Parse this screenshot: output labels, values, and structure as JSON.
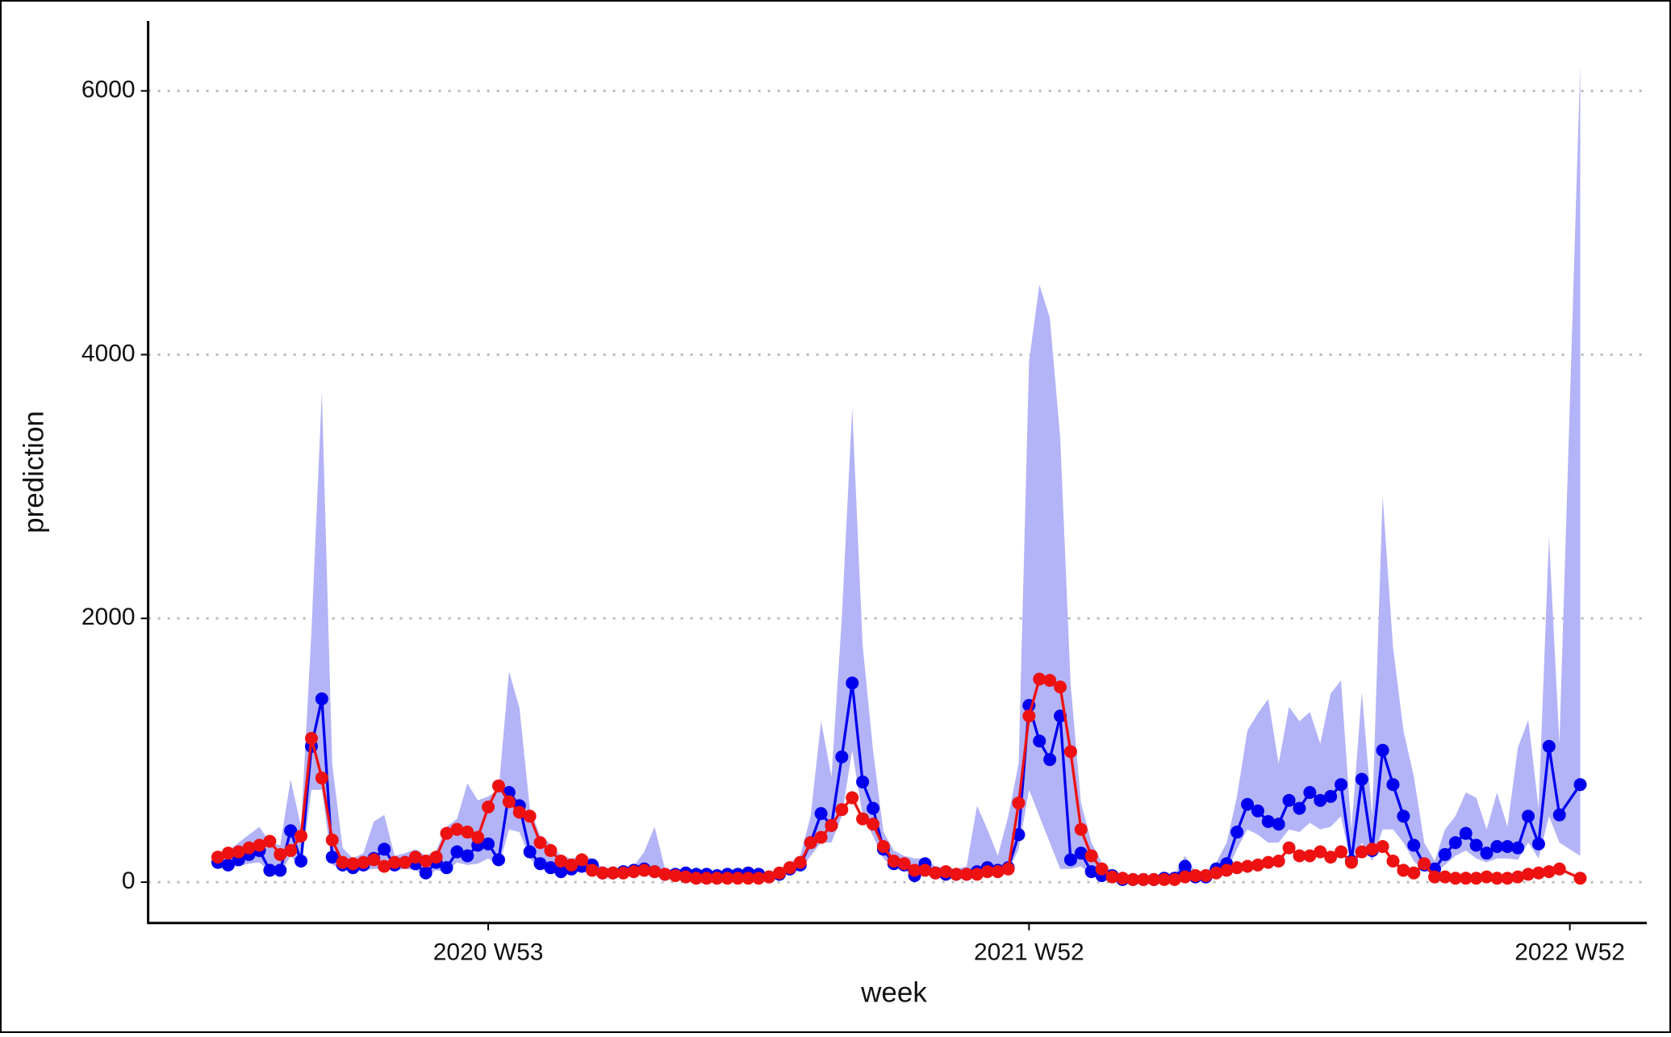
{
  "chart_data": {
    "type": "line",
    "x_label": "week",
    "y_label": "prediction",
    "x": [
      -26,
      -25,
      -24,
      -23,
      -22,
      -21,
      -20,
      -19,
      -18,
      -17,
      -16,
      -15,
      -14,
      -13,
      -12,
      -11,
      -10,
      -9,
      -8,
      -7,
      -6,
      -5,
      -4,
      -3,
      -2,
      -1,
      0,
      1,
      2,
      3,
      4,
      5,
      6,
      7,
      8,
      9,
      10,
      11,
      12,
      13,
      14,
      15,
      16,
      17,
      18,
      19,
      20,
      21,
      22,
      23,
      24,
      25,
      26,
      27,
      28,
      29,
      30,
      31,
      32,
      33,
      34,
      35,
      36,
      37,
      38,
      39,
      40,
      41,
      42,
      43,
      44,
      45,
      46,
      47,
      48,
      49,
      50,
      51,
      52,
      53,
      54,
      55,
      56,
      57,
      58,
      59,
      60,
      61,
      62,
      63,
      64,
      65,
      66,
      67,
      68,
      69,
      70,
      71,
      72,
      73,
      74,
      75,
      76,
      77,
      78,
      79,
      80,
      81,
      82,
      83,
      84,
      85,
      86,
      87,
      88,
      89,
      90,
      91,
      92,
      93,
      94,
      95,
      96,
      97,
      98,
      99,
      100,
      101,
      102,
      103,
      105
    ],
    "band": {
      "color": "#b3b3f7",
      "lower": [
        100,
        110,
        120,
        140,
        150,
        80,
        60,
        200,
        100,
        700,
        700,
        130,
        100,
        80,
        90,
        100,
        100,
        90,
        100,
        90,
        50,
        90,
        80,
        150,
        130,
        140,
        180,
        120,
        400,
        380,
        180,
        100,
        80,
        60,
        70,
        80,
        60,
        50,
        50,
        50,
        50,
        60,
        50,
        40,
        40,
        30,
        30,
        30,
        30,
        30,
        30,
        30,
        30,
        30,
        40,
        70,
        90,
        200,
        300,
        300,
        500,
        1000,
        500,
        350,
        180,
        100,
        90,
        40,
        60,
        50,
        40,
        40,
        40,
        50,
        60,
        60,
        80,
        250,
        700,
        500,
        300,
        100,
        100,
        120,
        50,
        30,
        20,
        10,
        10,
        10,
        10,
        10,
        10,
        30,
        30,
        30,
        60,
        80,
        250,
        400,
        360,
        300,
        300,
        400,
        380,
        450,
        400,
        420,
        500,
        120,
        300,
        160,
        400,
        400,
        300,
        160,
        80,
        70,
        130,
        200,
        240,
        180,
        150,
        180,
        180,
        170,
        300,
        180,
        500,
        300,
        200
      ],
      "upper": [
        220,
        240,
        300,
        360,
        420,
        300,
        280,
        780,
        420,
        1900,
        3720,
        900,
        260,
        180,
        220,
        460,
        510,
        200,
        220,
        250,
        200,
        240,
        420,
        480,
        750,
        620,
        650,
        700,
        1600,
        1320,
        560,
        350,
        290,
        200,
        180,
        200,
        180,
        110,
        100,
        110,
        120,
        230,
        420,
        100,
        90,
        90,
        90,
        80,
        80,
        80,
        80,
        90,
        80,
        70,
        100,
        150,
        200,
        500,
        1220,
        800,
        2000,
        3600,
        1800,
        1000,
        380,
        240,
        200,
        180,
        180,
        120,
        110,
        100,
        120,
        580,
        400,
        200,
        500,
        900,
        3950,
        4530,
        4280,
        3370,
        1500,
        600,
        300,
        150,
        80,
        60,
        50,
        50,
        50,
        60,
        60,
        200,
        80,
        80,
        150,
        300,
        650,
        1150,
        1280,
        1390,
        900,
        1330,
        1220,
        1290,
        1050,
        1430,
        1530,
        400,
        1440,
        500,
        2930,
        1780,
        1150,
        800,
        300,
        160,
        400,
        500,
        680,
        640,
        400,
        680,
        420,
        1020,
        1230,
        560,
        2620,
        1050,
        6200
      ]
    },
    "series": [
      {
        "color": "#0000ee",
        "values": [
          150,
          130,
          170,
          210,
          240,
          90,
          90,
          390,
          160,
          1030,
          1390,
          190,
          130,
          110,
          130,
          180,
          250,
          130,
          150,
          140,
          70,
          150,
          110,
          230,
          200,
          280,
          290,
          170,
          680,
          580,
          230,
          140,
          110,
          80,
          100,
          120,
          130,
          70,
          70,
          80,
          90,
          100,
          80,
          60,
          60,
          70,
          60,
          60,
          50,
          60,
          60,
          70,
          60,
          40,
          60,
          100,
          130,
          300,
          520,
          430,
          950,
          1510,
          760,
          560,
          250,
          140,
          130,
          50,
          140,
          70,
          60,
          60,
          60,
          80,
          110,
          90,
          110,
          360,
          1340,
          1070,
          930,
          1260,
          170,
          220,
          80,
          50,
          50,
          20,
          20,
          20,
          20,
          30,
          30,
          120,
          40,
          40,
          100,
          140,
          380,
          590,
          540,
          460,
          440,
          620,
          560,
          680,
          620,
          650,
          740,
          160,
          780,
          240,
          1000,
          740,
          500,
          280,
          130,
          100,
          210,
          300,
          370,
          280,
          220,
          270,
          270,
          260,
          500,
          290,
          1030,
          510,
          740
        ]
      },
      {
        "color": "#ee1111",
        "values": [
          190,
          220,
          230,
          260,
          280,
          310,
          210,
          240,
          350,
          1090,
          790,
          320,
          150,
          140,
          150,
          170,
          120,
          150,
          150,
          190,
          160,
          190,
          370,
          400,
          380,
          340,
          570,
          730,
          610,
          530,
          500,
          300,
          240,
          160,
          130,
          170,
          90,
          70,
          70,
          70,
          80,
          90,
          80,
          60,
          50,
          40,
          30,
          30,
          30,
          30,
          30,
          30,
          30,
          40,
          70,
          110,
          150,
          300,
          340,
          430,
          550,
          640,
          480,
          440,
          270,
          160,
          140,
          90,
          90,
          70,
          80,
          60,
          60,
          60,
          80,
          80,
          100,
          600,
          1260,
          1540,
          1530,
          1480,
          990,
          400,
          200,
          100,
          40,
          30,
          20,
          20,
          20,
          20,
          20,
          40,
          50,
          50,
          70,
          90,
          110,
          120,
          130,
          150,
          160,
          260,
          200,
          200,
          230,
          190,
          230,
          150,
          230,
          250,
          270,
          160,
          90,
          70,
          140,
          40,
          40,
          30,
          30,
          30,
          40,
          30,
          30,
          40,
          60,
          70,
          80,
          100,
          30
        ]
      }
    ],
    "xlim": [
      -32.7,
      111.4
    ],
    "xticks": [
      {
        "value": 0,
        "label": "2020 W53"
      },
      {
        "value": 52,
        "label": "2021 W52"
      },
      {
        "value": 104,
        "label": "2022 W52"
      }
    ],
    "ylim": [
      -310,
      6530
    ],
    "yticks": [
      0,
      2000,
      4000,
      6000
    ],
    "grid": true
  }
}
